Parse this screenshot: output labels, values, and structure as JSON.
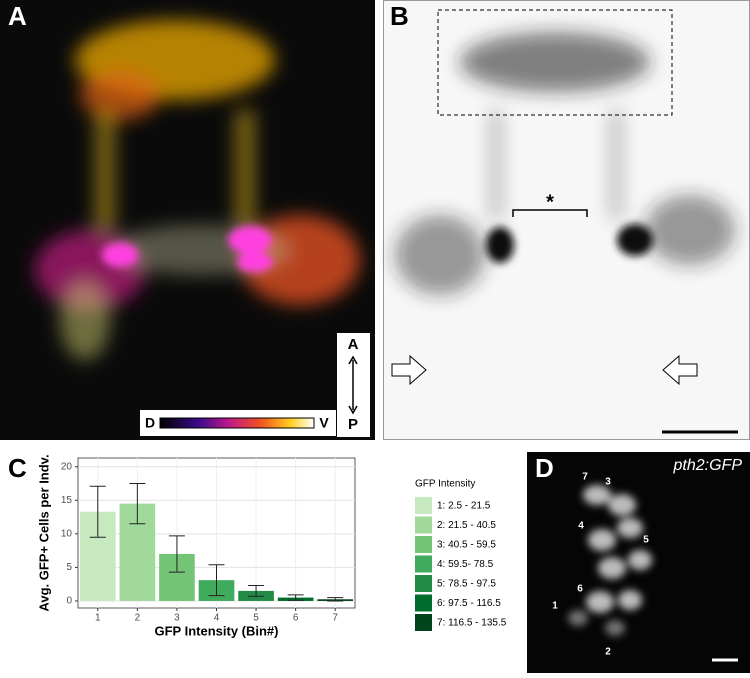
{
  "panels": {
    "a": {
      "label": "A",
      "colorbar": {
        "left": "D",
        "right": "V"
      },
      "axis": {
        "top": "A",
        "bottom": "P"
      }
    },
    "b": {
      "label": "B",
      "marker": "*"
    },
    "c": {
      "label": "C"
    },
    "d": {
      "label": "D",
      "title": "pth2:GFP",
      "cells": [
        "7",
        "3",
        "4",
        "5",
        "6",
        "1",
        "2"
      ]
    }
  },
  "chart_data": {
    "type": "bar",
    "categories": [
      "1",
      "2",
      "3",
      "4",
      "5",
      "6",
      "7"
    ],
    "values": [
      13.3,
      14.5,
      7.0,
      3.1,
      1.5,
      0.5,
      0.25
    ],
    "errors": [
      3.8,
      3.0,
      2.7,
      2.3,
      0.8,
      0.4,
      0.25
    ],
    "colors": [
      "#c7e9c0",
      "#a1d99b",
      "#74c476",
      "#41ab5d",
      "#238b45",
      "#006d2c",
      "#00441b"
    ],
    "ylim": [
      -1.05,
      21.3
    ],
    "yticks": [
      0,
      5,
      10,
      15,
      20
    ],
    "grid": true,
    "x_label": "GFP Intensity (Bin#)",
    "y_label": "Avg. GFP+ Cells per Indv.",
    "legend": {
      "title": "GFP Intensity",
      "labels": [
        "1: 2.5 - 21.5",
        "2: 21.5 - 40.5",
        "3: 40.5 - 59.5",
        "4: 59.5- 78.5",
        "5: 78.5 - 97.5",
        "6: 97.5 - 116.5",
        "7: 116.5 - 135.5"
      ]
    }
  }
}
